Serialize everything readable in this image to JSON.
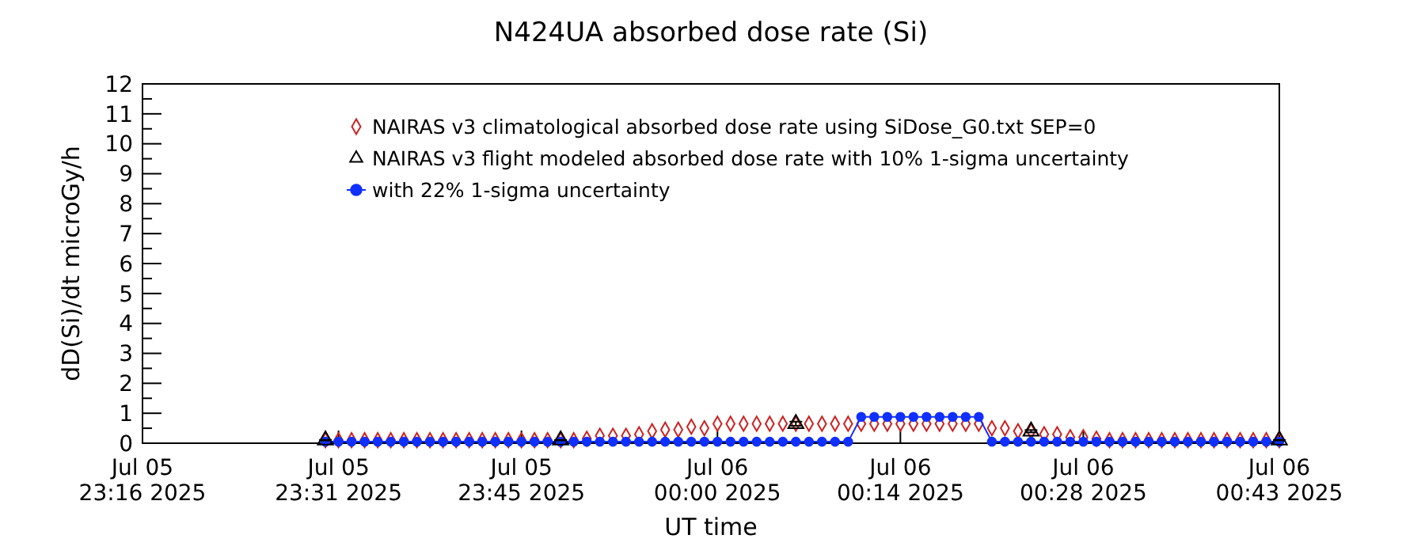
{
  "chart_data": {
    "type": "scatter",
    "title": "N424UA absorbed dose rate (Si)",
    "xlabel": "UT time",
    "ylabel": "dD(Si)/dt microGy/h",
    "legend": "top",
    "grid": false,
    "xlim": [
      "2025-07-05T23:16",
      "2025-07-06T00:43"
    ],
    "xticks": [
      {
        "value": "2025-07-05T23:16",
        "label": "Jul 05\n23:16 2025"
      },
      {
        "value": "2025-07-05T23:31",
        "label": "Jul 05\n23:31 2025"
      },
      {
        "value": "2025-07-05T23:45",
        "label": "Jul 05\n23:45 2025"
      },
      {
        "value": "2025-07-06T00:00",
        "label": "Jul 06\n00:00 2025"
      },
      {
        "value": "2025-07-06T00:14",
        "label": "Jul 06\n00:14 2025"
      },
      {
        "value": "2025-07-06T00:28",
        "label": "Jul 06\n00:28 2025"
      },
      {
        "value": "2025-07-06T00:43",
        "label": "Jul 06\n00:43 2025"
      }
    ],
    "ylim": [
      0,
      12
    ],
    "yticks": [
      0,
      {
        "value": 0.5,
        "label": null
      },
      1,
      {
        "value": 1.5,
        "label": null
      },
      2,
      {
        "value": 2.5,
        "label": null
      },
      3,
      {
        "value": 3.5,
        "label": null
      },
      4,
      {
        "value": 4.5,
        "label": null
      },
      5,
      {
        "value": 5.5,
        "label": null
      },
      6,
      {
        "value": 6.5,
        "label": null
      },
      7,
      {
        "value": 7.5,
        "label": null
      },
      8,
      {
        "value": 8.5,
        "label": null
      },
      9,
      {
        "value": 9.5,
        "label": null
      },
      10,
      {
        "value": 10.5,
        "label": null
      },
      11,
      {
        "value": 11.5,
        "label": null
      },
      12
    ],
    "x": [
      "2025-07-05T23:30",
      "2025-07-05T23:31",
      "2025-07-05T23:32",
      "2025-07-05T23:33",
      "2025-07-05T23:34",
      "2025-07-05T23:35",
      "2025-07-05T23:36",
      "2025-07-05T23:37",
      "2025-07-05T23:38",
      "2025-07-05T23:39",
      "2025-07-05T23:40",
      "2025-07-05T23:41",
      "2025-07-05T23:42",
      "2025-07-05T23:43",
      "2025-07-05T23:44",
      "2025-07-05T23:45",
      "2025-07-05T23:46",
      "2025-07-05T23:47",
      "2025-07-05T23:48",
      "2025-07-05T23:49",
      "2025-07-05T23:50",
      "2025-07-05T23:51",
      "2025-07-05T23:52",
      "2025-07-05T23:53",
      "2025-07-05T23:54",
      "2025-07-05T23:55",
      "2025-07-05T23:56",
      "2025-07-05T23:57",
      "2025-07-05T23:58",
      "2025-07-05T23:59",
      "2025-07-06T00:00",
      "2025-07-06T00:01",
      "2025-07-06T00:02",
      "2025-07-06T00:03",
      "2025-07-06T00:04",
      "2025-07-06T00:05",
      "2025-07-06T00:06",
      "2025-07-06T00:07",
      "2025-07-06T00:08",
      "2025-07-06T00:09",
      "2025-07-06T00:10",
      "2025-07-06T00:11",
      "2025-07-06T00:12",
      "2025-07-06T00:13",
      "2025-07-06T00:14",
      "2025-07-06T00:15",
      "2025-07-06T00:16",
      "2025-07-06T00:17",
      "2025-07-06T00:18",
      "2025-07-06T00:19",
      "2025-07-06T00:20",
      "2025-07-06T00:21",
      "2025-07-06T00:22",
      "2025-07-06T00:23",
      "2025-07-06T00:24",
      "2025-07-06T00:25",
      "2025-07-06T00:26",
      "2025-07-06T00:27",
      "2025-07-06T00:28",
      "2025-07-06T00:29",
      "2025-07-06T00:30",
      "2025-07-06T00:31",
      "2025-07-06T00:32",
      "2025-07-06T00:33",
      "2025-07-06T00:34",
      "2025-07-06T00:35",
      "2025-07-06T00:36",
      "2025-07-06T00:37",
      "2025-07-06T00:38",
      "2025-07-06T00:39",
      "2025-07-06T00:40",
      "2025-07-06T00:41",
      "2025-07-06T00:42",
      "2025-07-06T00:43"
    ],
    "series": [
      {
        "name": "NAIRAS v3 climatological absorbed dose rate using SiDose_G0.txt SEP=0",
        "marker": "diamond",
        "color": "#cc2222",
        "values": [
          0.1,
          0.1,
          0.1,
          0.1,
          0.1,
          0.1,
          0.1,
          0.1,
          0.1,
          0.1,
          0.1,
          0.1,
          0.1,
          0.1,
          0.1,
          0.1,
          0.1,
          0.1,
          0.1,
          0.1,
          0.15,
          0.25,
          0.25,
          0.25,
          0.3,
          0.4,
          0.45,
          0.45,
          0.55,
          0.5,
          0.65,
          0.65,
          0.65,
          0.65,
          0.65,
          0.65,
          0.65,
          0.65,
          0.65,
          0.65,
          0.65,
          0.65,
          0.65,
          0.65,
          0.65,
          0.65,
          0.65,
          0.65,
          0.65,
          0.65,
          0.65,
          0.5,
          0.5,
          0.4,
          0.4,
          0.3,
          0.3,
          0.2,
          0.2,
          0.15,
          0.1,
          0.1,
          0.1,
          0.1,
          0.1,
          0.1,
          0.1,
          0.1,
          0.1,
          0.1,
          0.1,
          0.1,
          0.1,
          0.1
        ]
      },
      {
        "name": "NAIRAS v3 flight modeled absorbed dose rate with 10% 1-sigma uncertainty",
        "marker": "triangle",
        "color": "#000000",
        "x": [
          "2025-07-05T23:30",
          "2025-07-05T23:48",
          "2025-07-06T00:06",
          "2025-07-06T00:24",
          "2025-07-06T00:43"
        ],
        "values": [
          0.1,
          0.1,
          0.65,
          0.4,
          0.1
        ],
        "errors": [
          0.01,
          0.01,
          0.07,
          0.04,
          0.01
        ]
      },
      {
        "name": "with 22% 1-sigma uncertainty",
        "type": "line",
        "marker": "circle",
        "color": "#1030ff",
        "values": [
          0.05,
          0.05,
          0.05,
          0.05,
          0.05,
          0.05,
          0.05,
          0.05,
          0.05,
          0.05,
          0.05,
          0.05,
          0.05,
          0.05,
          0.05,
          0.05,
          0.05,
          0.05,
          0.05,
          0.05,
          0.05,
          0.05,
          0.05,
          0.05,
          0.05,
          0.05,
          0.05,
          0.05,
          0.05,
          0.05,
          0.05,
          0.05,
          0.05,
          0.05,
          0.05,
          0.05,
          0.05,
          0.05,
          0.05,
          0.05,
          0.05,
          0.88,
          0.88,
          0.88,
          0.88,
          0.88,
          0.88,
          0.88,
          0.88,
          0.88,
          0.88,
          0.05,
          0.05,
          0.05,
          0.05,
          0.05,
          0.05,
          0.05,
          0.05,
          0.05,
          0.05,
          0.05,
          0.05,
          0.05,
          0.05,
          0.05,
          0.05,
          0.05,
          0.05,
          0.05,
          0.05,
          0.05,
          0.05,
          0.05
        ]
      }
    ]
  }
}
